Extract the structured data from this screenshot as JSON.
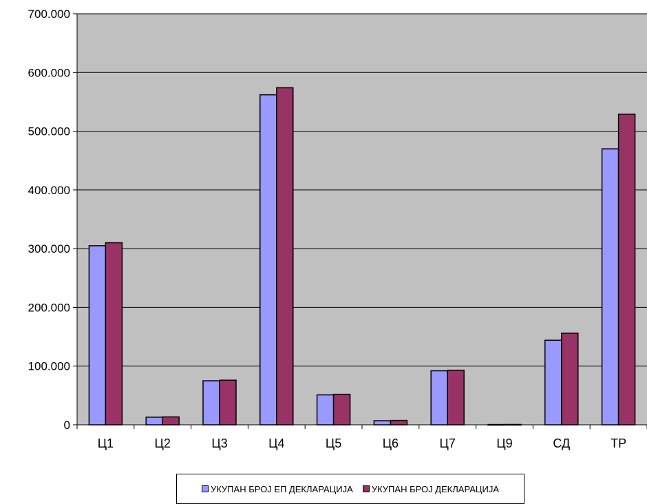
{
  "chart_data": {
    "type": "bar",
    "title": "",
    "xlabel": "",
    "ylabel": "",
    "categories": [
      "Ц1",
      "Ц2",
      "Ц3",
      "Ц4",
      "Ц5",
      "Ц6",
      "Ц7",
      "Ц9",
      "СД",
      "ТР"
    ],
    "series": [
      {
        "name": "УКУПАН БРОЈ ЕП ДЕКЛАРАЦИЈА",
        "color": "#9999ff",
        "values": [
          305000,
          13000,
          75000,
          562000,
          51000,
          7000,
          92000,
          500,
          144000,
          470000
        ]
      },
      {
        "name": "УКУПАН БРОЈ ДЕКЛАРАЦИЈА",
        "color": "#993366",
        "values": [
          310000,
          13500,
          76000,
          574000,
          52000,
          7500,
          93000,
          600,
          156000,
          529000
        ]
      }
    ],
    "ylim": [
      0,
      700000
    ],
    "yticks": [
      0,
      100000,
      200000,
      300000,
      400000,
      500000,
      600000,
      700000
    ],
    "ytick_labels": [
      "0",
      "100.000",
      "200.000",
      "300.000",
      "400.000",
      "500.000",
      "600.000",
      "700.000"
    ],
    "plot_background": "#c0c0c0",
    "grid": true,
    "legend_position": "bottom-center"
  }
}
